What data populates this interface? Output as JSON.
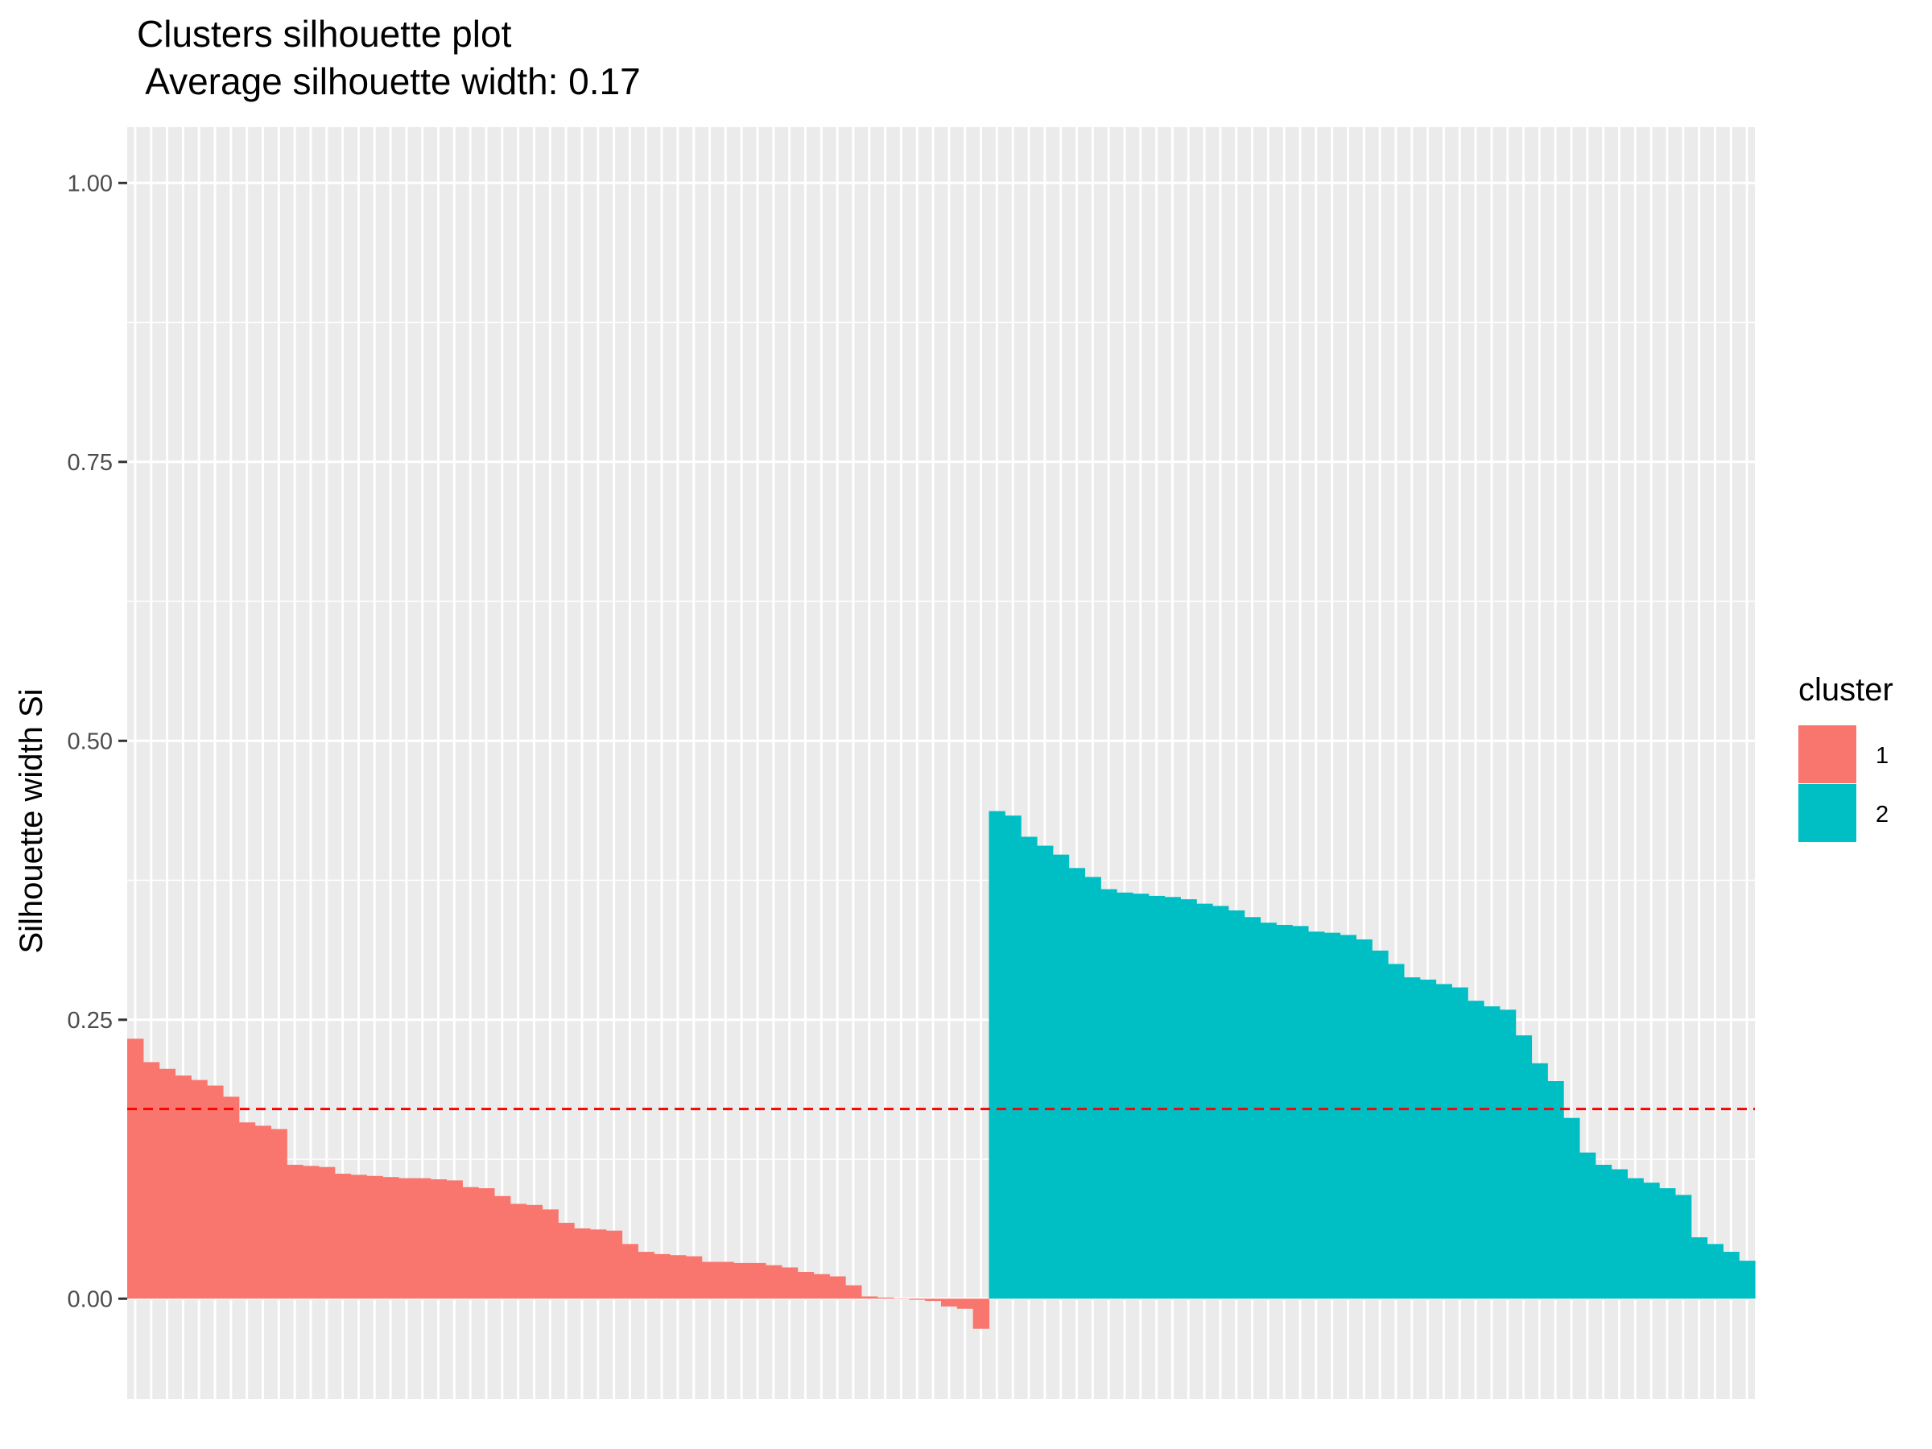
{
  "chart_data": {
    "type": "bar",
    "title": "Clusters silhouette plot",
    "subtitle": " Average silhouette width: 0.17",
    "xlabel": "",
    "ylabel": "Silhouette width Si",
    "ylim": [
      -0.09,
      1.05
    ],
    "yticks": [
      "0.00",
      "0.25",
      "0.50",
      "0.75",
      "1.00"
    ],
    "ytick_values": [
      0,
      0.25,
      0.5,
      0.75,
      1.0
    ],
    "reference_line": {
      "value": 0.17,
      "style": "dashed",
      "color": "#ff0000"
    },
    "grid": true,
    "panel_background": "#ebebeb",
    "legend": {
      "title": "cluster",
      "position": "right",
      "items": [
        {
          "label": "1",
          "color": "#f8766d"
        },
        {
          "label": "2",
          "color": "#00bfc4"
        }
      ]
    },
    "series": [
      {
        "cluster": "1",
        "color": "#f8766d",
        "values": [
          0.233,
          0.212,
          0.206,
          0.2,
          0.196,
          0.191,
          0.181,
          0.158,
          0.155,
          0.152,
          0.12,
          0.119,
          0.118,
          0.112,
          0.111,
          0.11,
          0.109,
          0.108,
          0.108,
          0.107,
          0.106,
          0.1,
          0.099,
          0.092,
          0.085,
          0.084,
          0.08,
          0.068,
          0.063,
          0.062,
          0.061,
          0.049,
          0.042,
          0.04,
          0.039,
          0.038,
          0.033,
          0.033,
          0.032,
          0.032,
          0.03,
          0.028,
          0.024,
          0.022,
          0.02,
          0.012,
          0.002,
          0.001,
          0.0,
          -0.001,
          -0.002,
          -0.007,
          -0.009,
          -0.027
        ]
      },
      {
        "cluster": "2",
        "color": "#00bfc4",
        "values": [
          0.437,
          0.433,
          0.414,
          0.406,
          0.398,
          0.386,
          0.378,
          0.367,
          0.364,
          0.363,
          0.361,
          0.36,
          0.358,
          0.354,
          0.352,
          0.348,
          0.342,
          0.337,
          0.335,
          0.334,
          0.329,
          0.328,
          0.326,
          0.322,
          0.312,
          0.3,
          0.288,
          0.286,
          0.282,
          0.279,
          0.267,
          0.262,
          0.259,
          0.236,
          0.211,
          0.195,
          0.162,
          0.131,
          0.12,
          0.116,
          0.108,
          0.104,
          0.099,
          0.093,
          0.055,
          0.049,
          0.042,
          0.034
        ]
      }
    ]
  }
}
